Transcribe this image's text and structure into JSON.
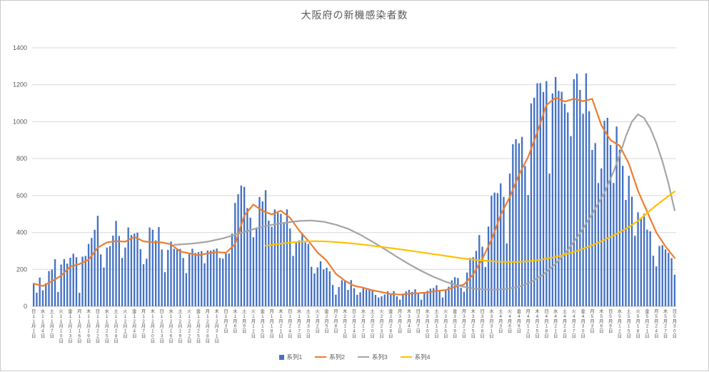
{
  "page": {
    "background": "#FFFFFF",
    "frame_border": "#C9C9C9",
    "text_color": "#595959"
  },
  "chart_data": {
    "type": "bar",
    "subtype": "combo-bar-line",
    "title": "大阪府の新機感染者数",
    "xlabel": "",
    "ylabel": "",
    "ylim": [
      0,
      1400
    ],
    "y_ticks": [
      0,
      200,
      400,
      600,
      800,
      1000,
      1200,
      1400
    ],
    "grid": "horizontal",
    "legend_position": "bottom",
    "x_axis": {
      "start_label": "日11月1日",
      "end_label": "日5月30日",
      "tick_interval_days": 3,
      "tick_labels": [
        "日11月1日",
        "水11月4日",
        "土11月7日",
        "火11月10日",
        "金11月13日",
        "月11月16日",
        "木11月19日",
        "日11月22日",
        "水11月25日",
        "土11月28日",
        "火12月1日",
        "金12月4日",
        "月12月7日",
        "木12月10日",
        "日12月13日",
        "水12月16日",
        "土12月19日",
        "火12月22日",
        "金12月25日",
        "月12月28日",
        "木12月31日",
        "日1月3日",
        "水1月6日",
        "土1月9日",
        "火1月12日",
        "金1月15日",
        "月1月18日",
        "木1月21日",
        "日1月24日",
        "水1月27日",
        "土1月30日",
        "火2月2日",
        "金2月5日",
        "月2月8日",
        "木2月11日",
        "日2月14日",
        "水2月17日",
        "土2月20日",
        "火2月23日",
        "金2月26日",
        "月3月1日",
        "木3月4日",
        "日3月7日",
        "水3月10日",
        "土3月13日",
        "火3月16日",
        "金3月19日",
        "月3月22日",
        "木3月25日",
        "日3月28日",
        "水3月31日",
        "土4月3日",
        "火4月6日",
        "金4月9日",
        "月4月12日",
        "木4月15日",
        "日4月18日",
        "水4月21日",
        "土4月24日",
        "火4月27日",
        "金4月30日",
        "月5月3日",
        "木5月6日",
        "日5月9日",
        "水5月12日",
        "土5月15日",
        "火5月18日",
        "金5月21日",
        "月5月24日",
        "木5月27日",
        "日5月30日"
      ]
    },
    "series": [
      {
        "name": "系列1",
        "type": "bar",
        "color": "#4472C4",
        "values": [
          123,
          74,
          156,
          87,
          125,
          191,
          199,
          255,
          78,
          226,
          256,
          231,
          263,
          285,
          266,
          73,
          269,
          273,
          338,
          370,
          415,
          490,
          281,
          210,
          318,
          326,
          383,
          463,
          381,
          262,
          318,
          427,
          386,
          394,
          399,
          310,
          228,
          258,
          427,
          415,
          357,
          429,
          308,
          185,
          306,
          351,
          312,
          309,
          311,
          262,
          180,
          283,
          312,
          289,
          294,
          299,
          233,
          302,
          302,
          307,
          313,
          262,
          258,
          286,
          286,
          394,
          560,
          607,
          654,
          647,
          532,
          480,
          374,
          427,
          592,
          568,
          629,
          464,
          431,
          525,
          506,
          501,
          450,
          525,
          421,
          273,
          343,
          357,
          397,
          346,
          338,
          214,
          178,
          211,
          244,
          200,
          209,
          190,
          116,
          63,
          105,
          141,
          141,
          89,
          142,
          98,
          62,
          76,
          100,
          91,
          91,
          90,
          62,
          48,
          54,
          64,
          82,
          69,
          83,
          54,
          36,
          64,
          81,
          89,
          78,
          92,
          73,
          36,
          76,
          84,
          96,
          99,
          114,
          83,
          48,
          92,
          106,
          141,
          158,
          153,
          100,
          79,
          183,
          262,
          266,
          300,
          386,
          323,
          213,
          432,
          599,
          616,
          613,
          666,
          593,
          341,
          719,
          878,
          905,
          883,
          918,
          760,
          603,
          1099,
          1130,
          1208,
          1209,
          1161,
          1220,
          719,
          1153,
          1242,
          1167,
          1162,
          1097,
          1050,
          922,
          1230,
          1260,
          1172,
          1043,
          1262,
          1057,
          847,
          884,
          668,
          747,
          1005,
          1021,
          874,
          668,
          974,
          849,
          761,
          576,
          707,
          594,
          382,
          509,
          477,
          501,
          415,
          406,
          274,
          216,
          327,
          331,
          308,
          290,
          261,
          171
        ]
      },
      {
        "name": "系列2",
        "type": "line",
        "color": "#ED7D31",
        "points": [
          [
            0,
            123
          ],
          [
            3,
            110
          ],
          [
            6,
            136
          ],
          [
            9,
            166
          ],
          [
            12,
            215
          ],
          [
            15,
            229
          ],
          [
            18,
            252
          ],
          [
            21,
            318
          ],
          [
            24,
            346
          ],
          [
            27,
            353
          ],
          [
            30,
            350
          ],
          [
            33,
            376
          ],
          [
            36,
            352
          ],
          [
            39,
            347
          ],
          [
            42,
            346
          ],
          [
            45,
            336
          ],
          [
            48,
            297
          ],
          [
            51,
            287
          ],
          [
            54,
            276
          ],
          [
            57,
            287
          ],
          [
            60,
            293
          ],
          [
            63,
            290
          ],
          [
            66,
            337
          ],
          [
            69,
            491
          ],
          [
            72,
            551
          ],
          [
            75,
            517
          ],
          [
            78,
            498
          ],
          [
            81,
            518
          ],
          [
            84,
            480
          ],
          [
            87,
            410
          ],
          [
            90,
            354
          ],
          [
            93,
            292
          ],
          [
            96,
            247
          ],
          [
            99,
            176
          ],
          [
            102,
            138
          ],
          [
            105,
            111
          ],
          [
            108,
            101
          ],
          [
            111,
            87
          ],
          [
            114,
            77
          ],
          [
            117,
            67
          ],
          [
            120,
            63
          ],
          [
            123,
            68
          ],
          [
            126,
            71
          ],
          [
            129,
            75
          ],
          [
            132,
            83
          ],
          [
            135,
            88
          ],
          [
            138,
            106
          ],
          [
            141,
            118
          ],
          [
            144,
            172
          ],
          [
            147,
            257
          ],
          [
            150,
            360
          ],
          [
            153,
            495
          ],
          [
            156,
            592
          ],
          [
            159,
            712
          ],
          [
            162,
            809
          ],
          [
            165,
            943
          ],
          [
            168,
            1090
          ],
          [
            171,
            1130
          ],
          [
            174,
            1109
          ],
          [
            177,
            1124
          ],
          [
            180,
            1111
          ],
          [
            183,
            1124
          ],
          [
            186,
            980
          ],
          [
            189,
            900
          ],
          [
            192,
            870
          ],
          [
            195,
            773
          ],
          [
            198,
            625
          ],
          [
            201,
            512
          ],
          [
            204,
            400
          ],
          [
            207,
            325
          ],
          [
            210,
            262
          ]
        ]
      },
      {
        "name": "系列3",
        "type": "line",
        "color": "#A5A5A5",
        "points": [
          [
            46,
            333
          ],
          [
            52,
            340
          ],
          [
            57,
            350
          ],
          [
            62,
            368
          ],
          [
            67,
            392
          ],
          [
            72,
            418
          ],
          [
            77,
            438
          ],
          [
            82,
            452
          ],
          [
            87,
            462
          ],
          [
            91,
            465
          ],
          [
            95,
            458
          ],
          [
            99,
            442
          ],
          [
            103,
            420
          ],
          [
            107,
            388
          ],
          [
            111,
            350
          ],
          [
            115,
            310
          ],
          [
            119,
            268
          ],
          [
            123,
            228
          ],
          [
            127,
            192
          ],
          [
            131,
            160
          ],
          [
            135,
            133
          ],
          [
            139,
            112
          ],
          [
            143,
            99
          ],
          [
            147,
            92
          ],
          [
            151,
            90
          ],
          [
            155,
            94
          ],
          [
            159,
            106
          ],
          [
            163,
            132
          ],
          [
            167,
            172
          ],
          [
            171,
            230
          ],
          [
            175,
            305
          ],
          [
            179,
            395
          ],
          [
            183,
            500
          ],
          [
            187,
            615
          ],
          [
            190,
            730
          ],
          [
            192,
            820
          ],
          [
            194,
            920
          ],
          [
            196,
            1000
          ],
          [
            198,
            1040
          ],
          [
            200,
            1020
          ],
          [
            202,
            965
          ],
          [
            204,
            885
          ],
          [
            206,
            785
          ],
          [
            208,
            665
          ],
          [
            210,
            520
          ]
        ]
      },
      {
        "name": "系列4",
        "type": "line",
        "color": "#FFC000",
        "points": [
          [
            76,
            328
          ],
          [
            80,
            337
          ],
          [
            84,
            345
          ],
          [
            88,
            351
          ],
          [
            92,
            353
          ],
          [
            96,
            351
          ],
          [
            100,
            347
          ],
          [
            105,
            340
          ],
          [
            110,
            330
          ],
          [
            115,
            320
          ],
          [
            120,
            309
          ],
          [
            125,
            297
          ],
          [
            130,
            285
          ],
          [
            135,
            273
          ],
          [
            140,
            261
          ],
          [
            145,
            251
          ],
          [
            150,
            244
          ],
          [
            154,
            240
          ],
          [
            158,
            240
          ],
          [
            162,
            244
          ],
          [
            166,
            252
          ],
          [
            170,
            264
          ],
          [
            174,
            280
          ],
          [
            178,
            300
          ],
          [
            182,
            324
          ],
          [
            186,
            352
          ],
          [
            190,
            384
          ],
          [
            194,
            420
          ],
          [
            198,
            462
          ],
          [
            202,
            520
          ],
          [
            205,
            560
          ],
          [
            207,
            585
          ],
          [
            209,
            610
          ],
          [
            210,
            622
          ]
        ]
      }
    ]
  }
}
